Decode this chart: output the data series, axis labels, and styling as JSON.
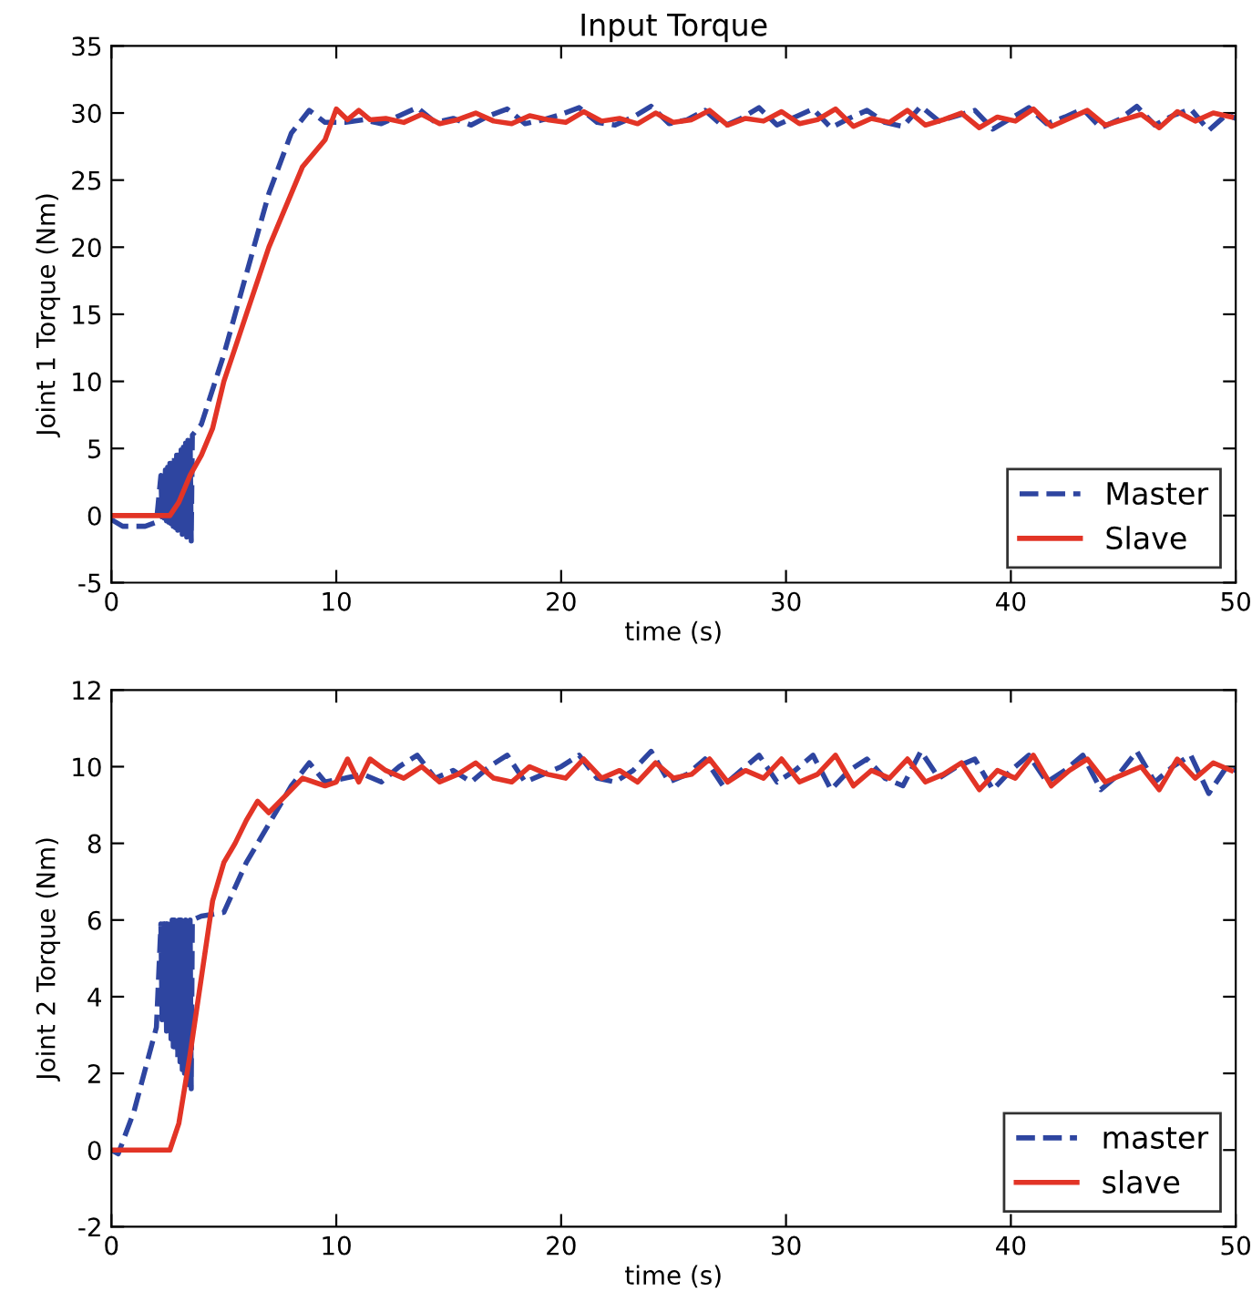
{
  "chart_data": [
    {
      "type": "line",
      "title": "Input Torque",
      "xlabel": "time (s)",
      "ylabel": "Joint 1 Torque (Nm)",
      "xlim": [
        0,
        50
      ],
      "ylim": [
        -5,
        35
      ],
      "xticks": [
        0,
        10,
        20,
        30,
        40,
        50
      ],
      "yticks": [
        -5,
        0,
        5,
        10,
        15,
        20,
        25,
        30,
        35
      ],
      "grid": false,
      "legend": "lower right",
      "marker": "none",
      "series": [
        {
          "name": "Master",
          "color": "#2e45a0",
          "line_style": "dashed",
          "x": [
            0,
            0.5,
            1.5,
            2.0,
            2.2,
            2.25,
            2.3,
            2.35,
            2.4,
            2.45,
            2.5,
            2.55,
            2.6,
            2.65,
            2.7,
            2.75,
            2.8,
            2.85,
            2.9,
            2.95,
            3.0,
            3.05,
            3.1,
            3.15,
            3.2,
            3.25,
            3.3,
            3.35,
            3.4,
            3.45,
            3.5,
            3.55,
            3.6,
            4,
            5,
            6,
            7,
            8,
            8.8,
            9.5,
            10.4,
            11.2,
            12.0,
            12.8,
            13.6,
            14.4,
            15.2,
            16.0,
            16.8,
            17.6,
            18.4,
            19.2,
            20.0,
            20.8,
            21.6,
            22.4,
            23.2,
            24.0,
            24.8,
            25.6,
            26.4,
            27.2,
            28.0,
            28.8,
            29.6,
            30.4,
            31.2,
            32.0,
            32.8,
            33.6,
            34.4,
            35.2,
            36.0,
            36.8,
            37.6,
            38.4,
            39.2,
            40.0,
            40.8,
            41.6,
            42.4,
            43.2,
            44.0,
            44.8,
            45.6,
            46.4,
            47.2,
            48.0,
            48.8,
            49.6,
            50
          ],
          "values": [
            -0.3,
            -0.8,
            -0.8,
            -0.5,
            3.0,
            -0.1,
            3.2,
            -0.2,
            3.4,
            -0.4,
            3.6,
            -0.5,
            3.9,
            -0.6,
            4.1,
            -0.8,
            4.3,
            -0.9,
            4.5,
            -1.1,
            4.7,
            -1.2,
            4.9,
            -1.4,
            5.1,
            -1.5,
            5.4,
            -1.6,
            5.6,
            -1.8,
            5.8,
            -1.9,
            6.0,
            6.8,
            12,
            18,
            24,
            28.5,
            30.2,
            29.3,
            29.3,
            29.5,
            29.2,
            29.8,
            30.4,
            29.3,
            29.6,
            29.1,
            29.8,
            30.3,
            29.2,
            29.5,
            29.9,
            30.4,
            29.3,
            29.1,
            29.7,
            30.5,
            29.2,
            29.5,
            30.2,
            29.0,
            29.6,
            30.4,
            29.1,
            29.7,
            30.3,
            28.9,
            29.6,
            30.2,
            29.3,
            29.0,
            30.5,
            29.4,
            29.8,
            30.2,
            28.8,
            29.6,
            30.4,
            29.2,
            29.7,
            30.3,
            28.9,
            29.5,
            30.5,
            29.1,
            29.8,
            30.3,
            28.7,
            29.9,
            29.6
          ]
        },
        {
          "name": "Slave",
          "color": "#e23426",
          "line_style": "solid",
          "x": [
            0,
            2.6,
            3,
            3.5,
            4,
            4.5,
            5,
            5.5,
            6,
            7,
            8.5,
            9.5,
            10,
            10.5,
            11,
            11.5,
            12.2,
            13.0,
            13.8,
            14.6,
            15.4,
            16.2,
            17.0,
            17.8,
            18.6,
            19.4,
            20.2,
            21.0,
            21.8,
            22.6,
            23.4,
            24.2,
            25.0,
            25.8,
            26.6,
            27.4,
            28.2,
            29.0,
            29.8,
            30.6,
            31.4,
            32.2,
            33.0,
            33.8,
            34.6,
            35.4,
            36.2,
            37.0,
            37.8,
            38.6,
            39.4,
            40.2,
            41.0,
            41.8,
            42.6,
            43.4,
            44.2,
            45.0,
            45.8,
            46.6,
            47.4,
            48.2,
            49.0,
            49.8
          ],
          "values": [
            0,
            0,
            1,
            3,
            4.5,
            6.5,
            10,
            12.5,
            15,
            20,
            26,
            28,
            30.3,
            29.5,
            30.2,
            29.5,
            29.6,
            29.3,
            29.9,
            29.2,
            29.5,
            30.0,
            29.4,
            29.2,
            29.8,
            29.5,
            29.3,
            30.1,
            29.4,
            29.6,
            29.2,
            30.0,
            29.3,
            29.5,
            30.2,
            29.1,
            29.6,
            29.4,
            30.1,
            29.2,
            29.5,
            30.3,
            29.0,
            29.6,
            29.3,
            30.2,
            29.1,
            29.5,
            30.0,
            28.9,
            29.7,
            29.4,
            30.3,
            29.0,
            29.6,
            30.2,
            29.1,
            29.5,
            29.9,
            28.9,
            30.1,
            29.4,
            30.0,
            29.7
          ]
        }
      ]
    },
    {
      "type": "line",
      "xlabel": "time (s)",
      "ylabel": "Joint 2 Torque (Nm)",
      "xlim": [
        0,
        50
      ],
      "ylim": [
        -2,
        12
      ],
      "xticks": [
        0,
        10,
        20,
        30,
        40,
        50
      ],
      "yticks": [
        -2,
        0,
        2,
        4,
        6,
        8,
        10,
        12
      ],
      "grid": false,
      "legend": "lower right",
      "marker": "none",
      "series": [
        {
          "name": "master",
          "color": "#2e45a0",
          "line_style": "dashed",
          "x": [
            0,
            0.3,
            1,
            2.0,
            2.2,
            2.25,
            2.3,
            2.35,
            2.4,
            2.45,
            2.5,
            2.55,
            2.6,
            2.65,
            2.7,
            2.75,
            2.8,
            2.85,
            2.9,
            2.95,
            3.0,
            3.05,
            3.1,
            3.15,
            3.2,
            3.25,
            3.3,
            3.35,
            3.4,
            3.45,
            3.5,
            3.55,
            3.6,
            4,
            5,
            6,
            7,
            8,
            8.8,
            9.5,
            10.4,
            11.2,
            12.0,
            12.8,
            13.6,
            14.4,
            15.2,
            16.0,
            16.8,
            17.6,
            18.4,
            19.2,
            20.0,
            20.8,
            21.6,
            22.4,
            23.2,
            24.0,
            24.8,
            25.6,
            26.4,
            27.2,
            28.0,
            28.8,
            29.6,
            30.4,
            31.2,
            32.0,
            32.8,
            33.6,
            34.4,
            35.2,
            36.0,
            36.8,
            37.6,
            38.4,
            39.2,
            40.0,
            40.8,
            41.6,
            42.4,
            43.2,
            44.0,
            44.8,
            45.6,
            46.4,
            47.2,
            48.0,
            48.8,
            49.6,
            50
          ],
          "values": [
            0,
            -0.1,
            1,
            3.2,
            5.9,
            3.4,
            5.9,
            3.3,
            5.9,
            3.1,
            5.9,
            3.0,
            5.9,
            2.9,
            6.0,
            2.7,
            6.0,
            2.6,
            6.0,
            2.4,
            6.0,
            2.3,
            6.0,
            2.1,
            6.0,
            2.0,
            6.0,
            1.9,
            6.0,
            1.7,
            6.0,
            1.6,
            6.0,
            6.1,
            6.2,
            7.5,
            8.5,
            9.5,
            10.1,
            9.6,
            9.7,
            9.8,
            9.6,
            10.0,
            10.3,
            9.7,
            9.9,
            9.6,
            10.0,
            10.3,
            9.6,
            9.8,
            10.0,
            10.3,
            9.7,
            9.6,
            9.9,
            10.4,
            9.6,
            9.8,
            10.2,
            9.5,
            9.9,
            10.3,
            9.6,
            9.9,
            10.3,
            9.4,
            9.9,
            10.2,
            9.7,
            9.5,
            10.4,
            9.7,
            10.0,
            10.2,
            9.4,
            9.9,
            10.3,
            9.6,
            9.9,
            10.3,
            9.4,
            9.8,
            10.4,
            9.6,
            10.0,
            10.3,
            9.3,
            10.0,
            9.9
          ]
        },
        {
          "name": "slave",
          "color": "#e23426",
          "line_style": "solid",
          "x": [
            0,
            2.6,
            3,
            3.5,
            4,
            4.5,
            5,
            5.5,
            6,
            6.5,
            7,
            8.5,
            9.5,
            10,
            10.5,
            11,
            11.5,
            12.2,
            13.0,
            13.8,
            14.6,
            15.4,
            16.2,
            17.0,
            17.8,
            18.6,
            19.4,
            20.2,
            21.0,
            21.8,
            22.6,
            23.4,
            24.2,
            25.0,
            25.8,
            26.6,
            27.4,
            28.2,
            29.0,
            29.8,
            30.6,
            31.4,
            32.2,
            33.0,
            33.8,
            34.6,
            35.4,
            36.2,
            37.0,
            37.8,
            38.6,
            39.4,
            40.2,
            41.0,
            41.8,
            42.6,
            43.4,
            44.2,
            45.0,
            45.8,
            46.6,
            47.4,
            48.2,
            49.0,
            49.8
          ],
          "values": [
            0,
            0,
            0.7,
            2.5,
            4.5,
            6.5,
            7.5,
            8.0,
            8.6,
            9.1,
            8.8,
            9.7,
            9.5,
            9.6,
            10.2,
            9.6,
            10.2,
            9.9,
            9.7,
            10.0,
            9.6,
            9.8,
            10.1,
            9.7,
            9.6,
            10.0,
            9.8,
            9.7,
            10.2,
            9.7,
            9.9,
            9.6,
            10.1,
            9.7,
            9.8,
            10.2,
            9.6,
            9.9,
            9.7,
            10.2,
            9.6,
            9.8,
            10.3,
            9.5,
            9.9,
            9.7,
            10.2,
            9.6,
            9.8,
            10.1,
            9.4,
            9.9,
            9.7,
            10.3,
            9.5,
            9.9,
            10.2,
            9.6,
            9.8,
            10.0,
            9.4,
            10.2,
            9.7,
            10.1,
            9.9
          ]
        }
      ]
    }
  ]
}
